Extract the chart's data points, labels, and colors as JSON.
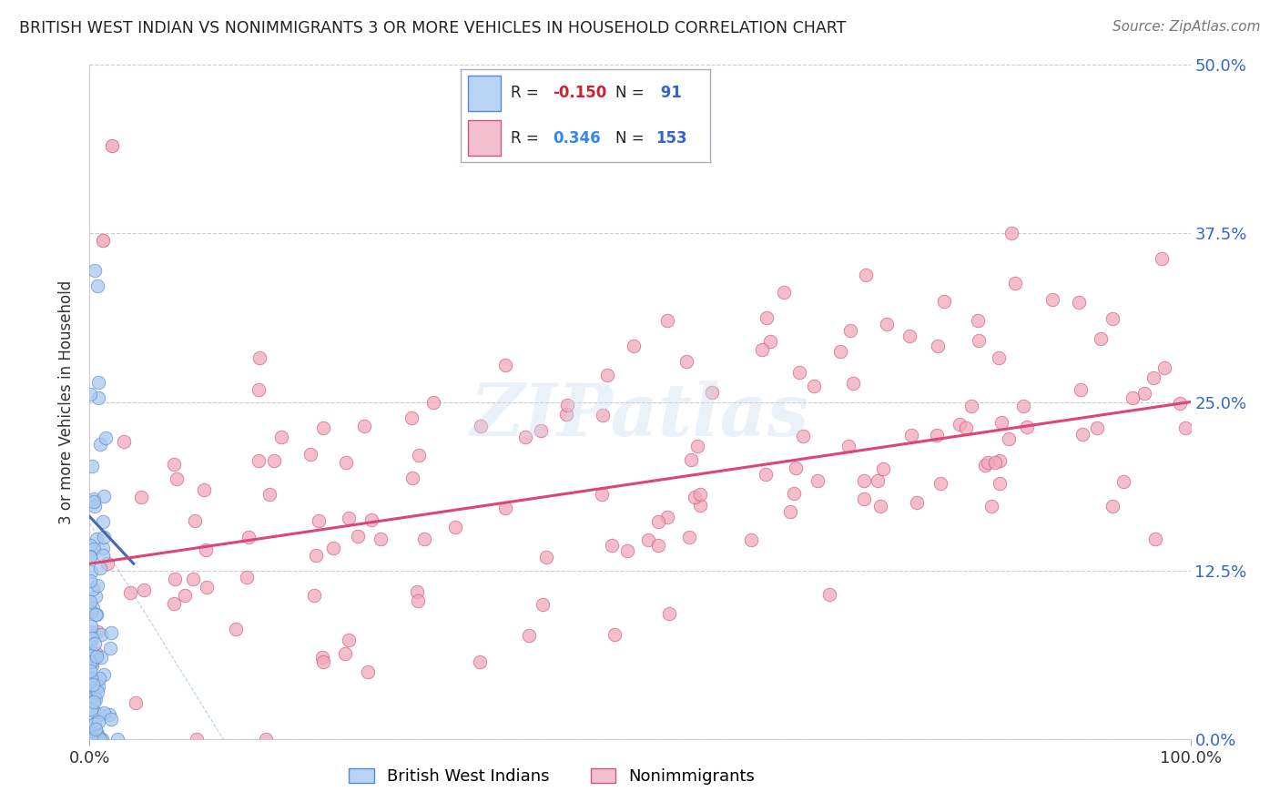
{
  "title": "BRITISH WEST INDIAN VS NONIMMIGRANTS 3 OR MORE VEHICLES IN HOUSEHOLD CORRELATION CHART",
  "source": "Source: ZipAtlas.com",
  "ylabel": "3 or more Vehicles in Household",
  "ytick_labels": [
    "0.0%",
    "12.5%",
    "25.0%",
    "37.5%",
    "50.0%"
  ],
  "ytick_values": [
    0.0,
    12.5,
    25.0,
    37.5,
    50.0
  ],
  "xlim": [
    0,
    100
  ],
  "ylim": [
    0,
    50
  ],
  "color_blue_fill": "#a8c8f0",
  "color_blue_edge": "#5588cc",
  "color_pink_fill": "#f0a8b8",
  "color_pink_edge": "#cc5588",
  "color_blue_legend": "#b8d4f4",
  "color_pink_legend": "#f4c0d0",
  "trend_blue_color": "#4466bb",
  "trend_pink_color": "#dd4477",
  "watermark": "ZIPatlas",
  "background_color": "#ffffff",
  "grid_color": "#cccccc",
  "blue_r": "-0.150",
  "blue_n": "91",
  "pink_r": "0.346",
  "pink_n": "153",
  "diag_color": "#99bbdd",
  "ytick_color": "#3366cc"
}
